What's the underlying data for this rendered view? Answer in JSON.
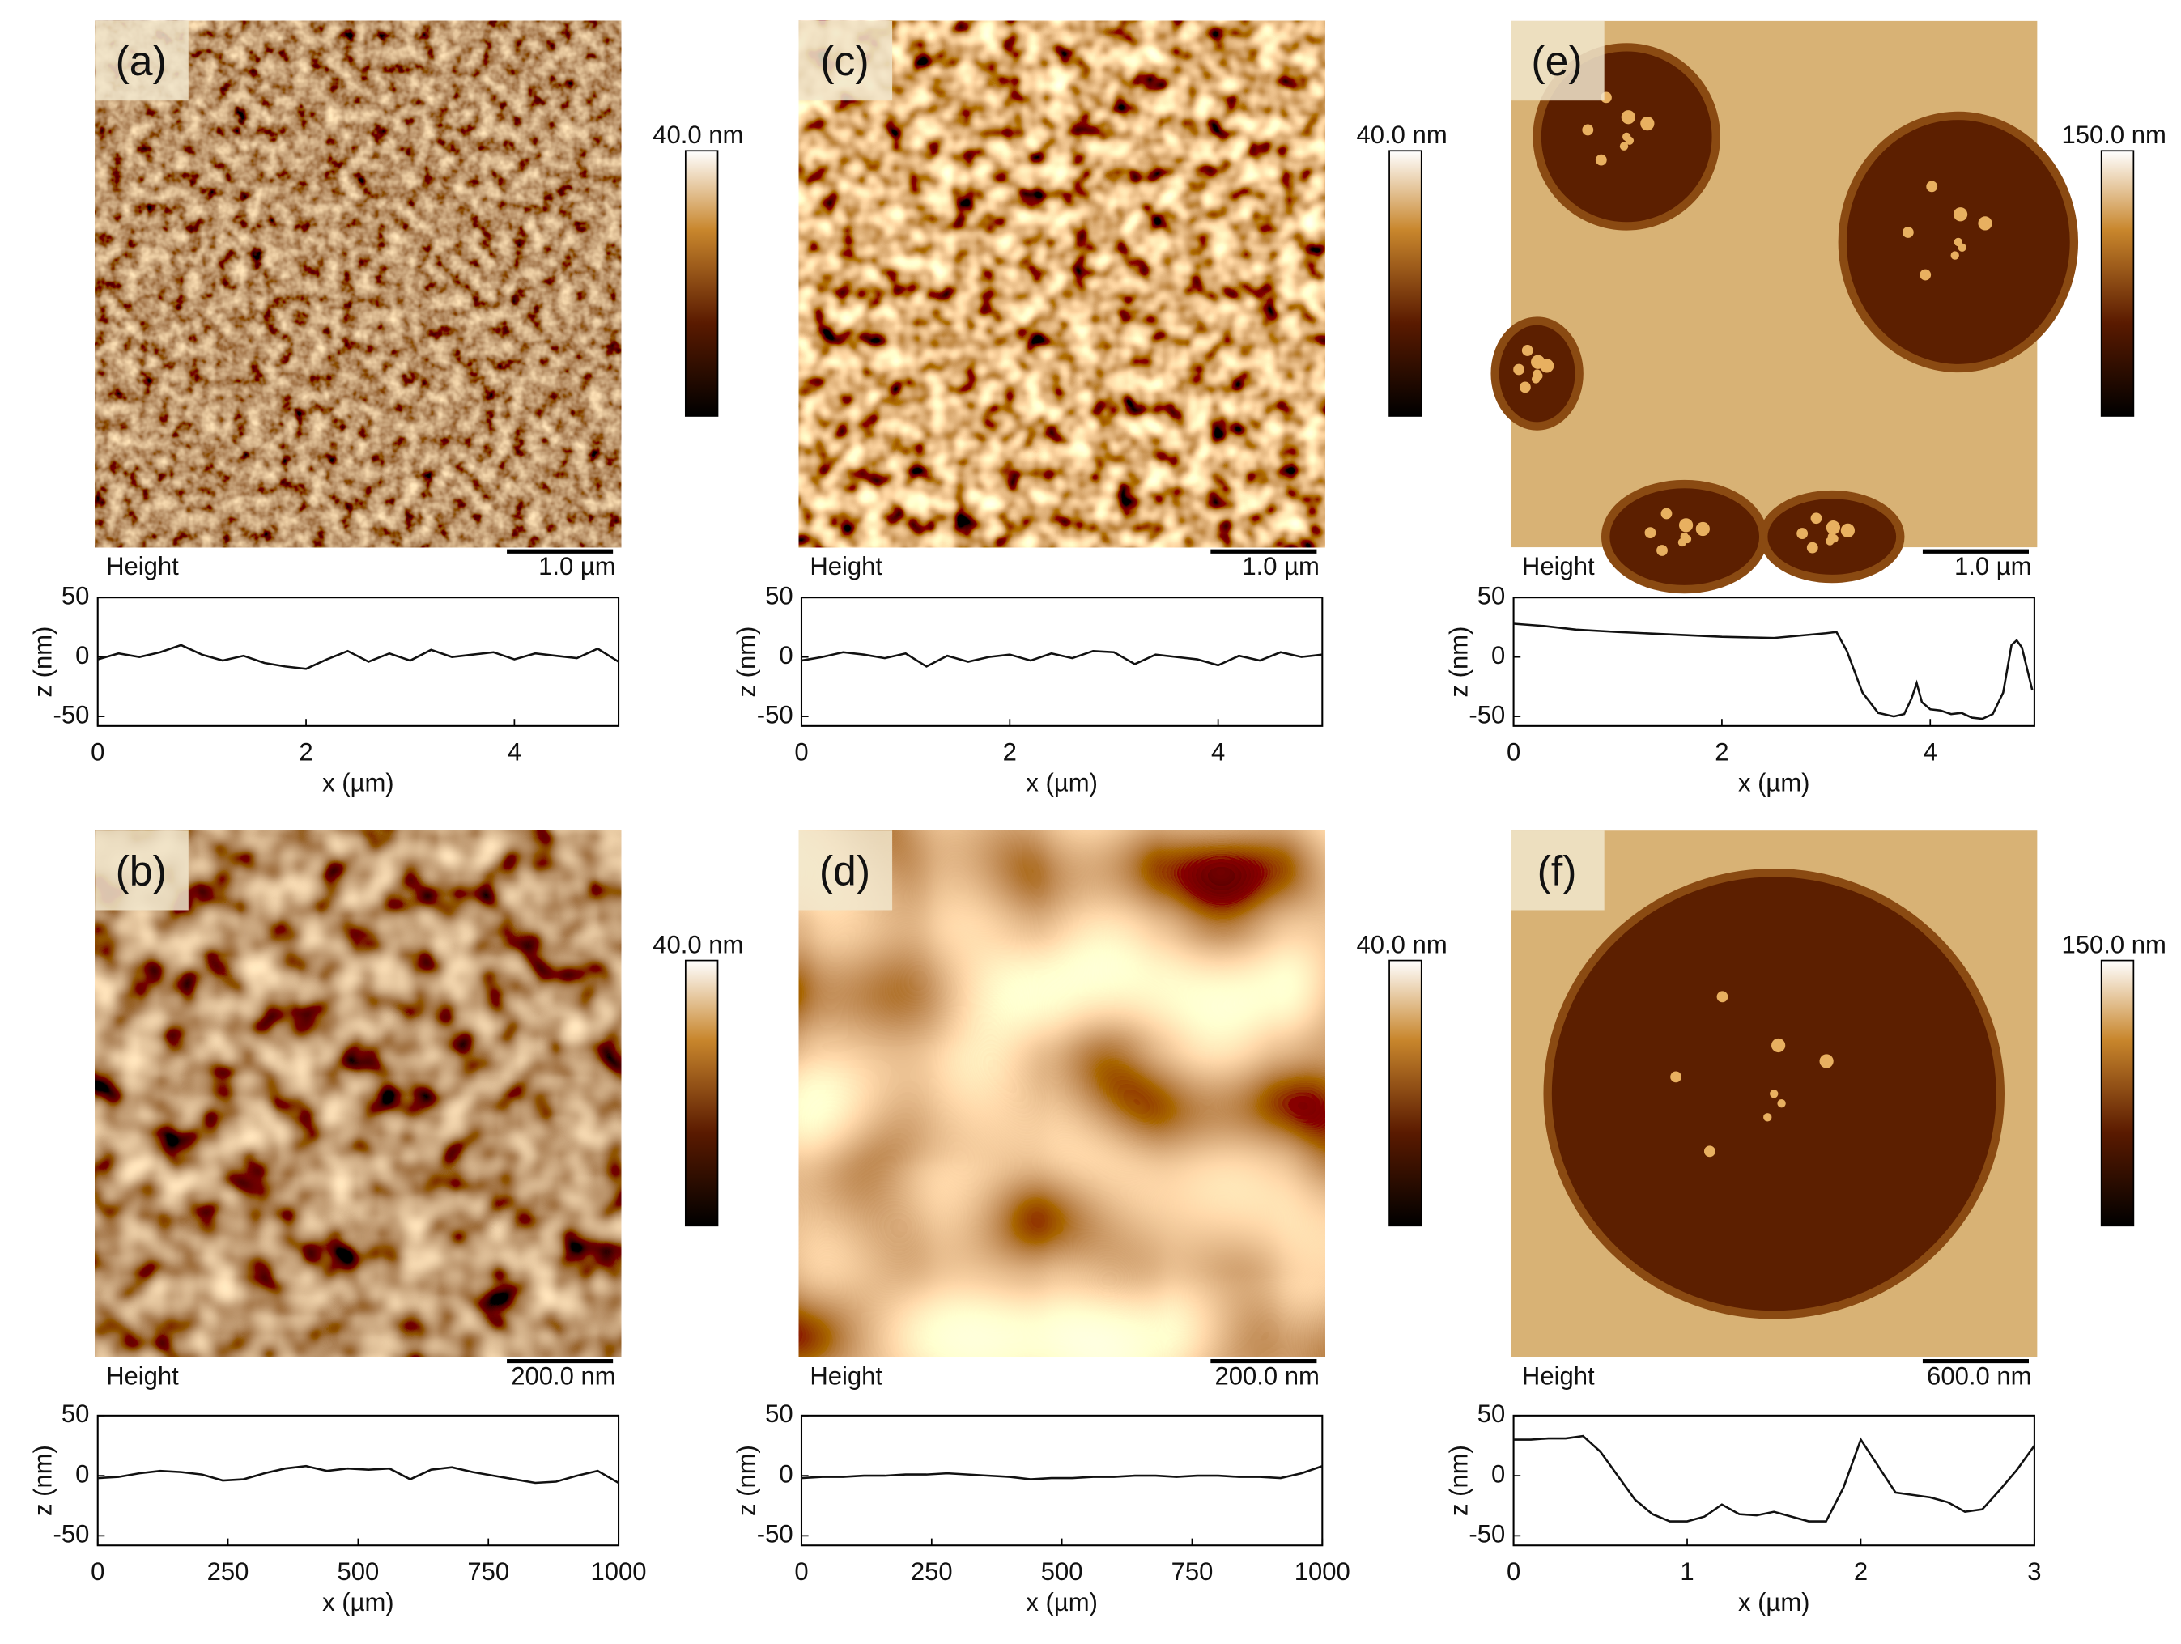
{
  "chart_data": [
    {
      "type": "line",
      "panel_label": "(a)",
      "image_label": "Height",
      "scale_bar": "1.0 µm",
      "color_scale": "40.0 nm",
      "x_label": "x (µm)",
      "y_label": "z (nm)",
      "color": "#111111",
      "x": [
        0,
        0.2,
        0.4,
        0.6,
        0.8,
        1,
        1.2,
        1.4,
        1.6,
        1.8,
        2,
        2.2,
        2.4,
        2.6,
        2.8,
        3,
        3.2,
        3.4,
        3.6,
        3.8,
        4,
        4.2,
        4.4,
        4.6,
        4.8,
        5
      ],
      "values": [
        -2,
        3,
        0,
        4,
        10,
        2,
        -3,
        1,
        -5,
        -8,
        -10,
        -2,
        5,
        -4,
        3,
        -3,
        6,
        0,
        2,
        4,
        -2,
        3,
        1,
        -1,
        7,
        -4
      ],
      "xlim": [
        0,
        5
      ],
      "xticks": [
        0,
        2,
        4
      ],
      "ylim": [
        -58,
        50
      ],
      "yticks": [
        -50,
        0,
        50
      ]
    },
    {
      "type": "line",
      "panel_label": "(b)",
      "image_label": "Height",
      "scale_bar": "200.0 nm",
      "color_scale": "40.0 nm",
      "x_label": "x (µm)",
      "y_label": "z (nm)",
      "color": "#111111",
      "x": [
        0,
        40,
        80,
        120,
        160,
        200,
        240,
        280,
        320,
        360,
        400,
        440,
        480,
        520,
        560,
        600,
        640,
        680,
        720,
        760,
        800,
        840,
        880,
        920,
        960,
        1000
      ],
      "values": [
        -2,
        -1,
        2,
        4,
        3,
        1,
        -4,
        -3,
        2,
        6,
        8,
        4,
        6,
        5,
        6,
        -3,
        5,
        7,
        3,
        0,
        -3,
        -6,
        -5,
        0,
        4,
        -6
      ],
      "xlim": [
        0,
        1000
      ],
      "xticks": [
        0,
        250,
        500,
        750,
        1000
      ],
      "ylim": [
        -58,
        50
      ],
      "yticks": [
        -50,
        0,
        50
      ]
    },
    {
      "type": "line",
      "panel_label": "(c)",
      "image_label": "Height",
      "scale_bar": "1.0 µm",
      "color_scale": "40.0 nm",
      "x_label": "x (µm)",
      "y_label": "z (nm)",
      "color": "#111111",
      "x": [
        0,
        0.2,
        0.4,
        0.6,
        0.8,
        1,
        1.2,
        1.4,
        1.6,
        1.8,
        2,
        2.2,
        2.4,
        2.6,
        2.8,
        3,
        3.2,
        3.4,
        3.6,
        3.8,
        4,
        4.2,
        4.4,
        4.6,
        4.8,
        5
      ],
      "values": [
        -3,
        0,
        4,
        2,
        -1,
        3,
        -8,
        1,
        -4,
        0,
        2,
        -3,
        3,
        -1,
        5,
        4,
        -6,
        2,
        0,
        -2,
        -7,
        1,
        -3,
        4,
        0,
        2
      ],
      "xlim": [
        0,
        5
      ],
      "xticks": [
        0,
        2,
        4
      ],
      "ylim": [
        -58,
        50
      ],
      "yticks": [
        -50,
        0,
        50
      ]
    },
    {
      "type": "line",
      "panel_label": "(d)",
      "image_label": "Height",
      "scale_bar": "200.0 nm",
      "color_scale": "40.0 nm",
      "x_label": "x (µm)",
      "y_label": "z (nm)",
      "color": "#111111",
      "x": [
        0,
        40,
        80,
        120,
        160,
        200,
        240,
        280,
        320,
        360,
        400,
        440,
        480,
        520,
        560,
        600,
        640,
        680,
        720,
        760,
        800,
        840,
        880,
        920,
        960,
        1000
      ],
      "values": [
        -2,
        -1,
        -1,
        0,
        0,
        1,
        1,
        2,
        1,
        0,
        -1,
        -3,
        -2,
        -2,
        -1,
        -1,
        0,
        0,
        -1,
        0,
        0,
        -1,
        -1,
        -2,
        2,
        8
      ],
      "xlim": [
        0,
        1000
      ],
      "xticks": [
        0,
        250,
        500,
        750,
        1000
      ],
      "ylim": [
        -58,
        50
      ],
      "yticks": [
        -50,
        0,
        50
      ]
    },
    {
      "type": "line",
      "panel_label": "(e)",
      "image_label": "Height",
      "scale_bar": "1.0 µm",
      "color_scale": "150.0 nm",
      "x_label": "x (µm)",
      "y_label": "z (nm)",
      "color": "#111111",
      "x": [
        0,
        0.3,
        0.6,
        1,
        1.5,
        2,
        2.5,
        3,
        3.1,
        3.2,
        3.35,
        3.5,
        3.65,
        3.75,
        3.82,
        3.87,
        3.92,
        4.0,
        4.1,
        4.2,
        4.3,
        4.4,
        4.5,
        4.6,
        4.7,
        4.78,
        4.83,
        4.88,
        4.93,
        4.98
      ],
      "values": [
        28,
        26,
        23,
        21,
        19,
        17,
        16,
        20,
        21,
        5,
        -30,
        -47,
        -50,
        -48,
        -35,
        -22,
        -38,
        -44,
        -45,
        -48,
        -47,
        -51,
        -52,
        -48,
        -30,
        10,
        14,
        8,
        -10,
        -28
      ],
      "xlim": [
        0,
        5
      ],
      "xticks": [
        0,
        2,
        4
      ],
      "ylim": [
        -58,
        50
      ],
      "yticks": [
        -50,
        0,
        50
      ]
    },
    {
      "type": "line",
      "panel_label": "(f)",
      "image_label": "Height",
      "scale_bar": "600.0 nm",
      "color_scale": "150.0 nm",
      "x_label": "x (µm)",
      "y_label": "z (nm)",
      "color": "#111111",
      "x": [
        0,
        0.1,
        0.2,
        0.3,
        0.4,
        0.5,
        0.6,
        0.7,
        0.8,
        0.9,
        1,
        1.1,
        1.2,
        1.3,
        1.4,
        1.5,
        1.6,
        1.7,
        1.8,
        1.9,
        2,
        2.1,
        2.2,
        2.3,
        2.4,
        2.5,
        2.6,
        2.7,
        2.8,
        2.9,
        3
      ],
      "values": [
        30,
        30,
        31,
        31,
        33,
        20,
        0,
        -20,
        -32,
        -38,
        -38,
        -34,
        -24,
        -32,
        -33,
        -30,
        -34,
        -38,
        -38,
        -10,
        30,
        8,
        -14,
        -16,
        -18,
        -22,
        -30,
        -28,
        -12,
        5,
        25
      ],
      "xlim": [
        0,
        3
      ],
      "xticks": [
        0,
        1,
        2,
        3
      ],
      "ylim": [
        -58,
        50
      ],
      "yticks": [
        -50,
        0,
        50
      ]
    }
  ]
}
